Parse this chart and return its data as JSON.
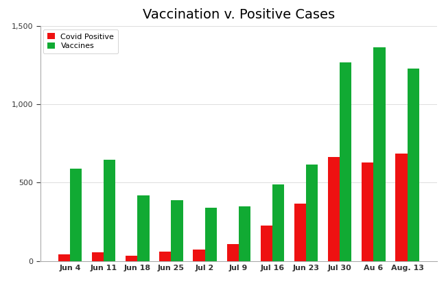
{
  "title": "Vaccination v. Positive Cases",
  "categories": [
    "Jun 4",
    "Jun 11",
    "Jun 18",
    "Jun 25",
    "Jul 2",
    "Jul 9",
    "Jul 16",
    "Jun 23",
    "Jul 30",
    "Au 6",
    "Aug. 13"
  ],
  "covid_positive": [
    42,
    55,
    35,
    62,
    72,
    108,
    228,
    368,
    662,
    630,
    685
  ],
  "vaccines": [
    590,
    645,
    420,
    390,
    340,
    350,
    490,
    615,
    1270,
    1365,
    1230
  ],
  "covid_color": "#ee1111",
  "vaccine_color": "#11aa33",
  "title_fontsize": 14,
  "tick_fontsize": 8,
  "legend_fontsize": 8,
  "ylim": [
    0,
    1500
  ],
  "yticks": [
    0,
    500,
    1000,
    1500
  ],
  "ytick_labels": [
    "0",
    "500",
    "1,000",
    "1,500"
  ],
  "legend_labels": [
    "Covid Positive",
    "Vaccines"
  ],
  "background_color": "#ffffff",
  "bar_width": 0.35
}
